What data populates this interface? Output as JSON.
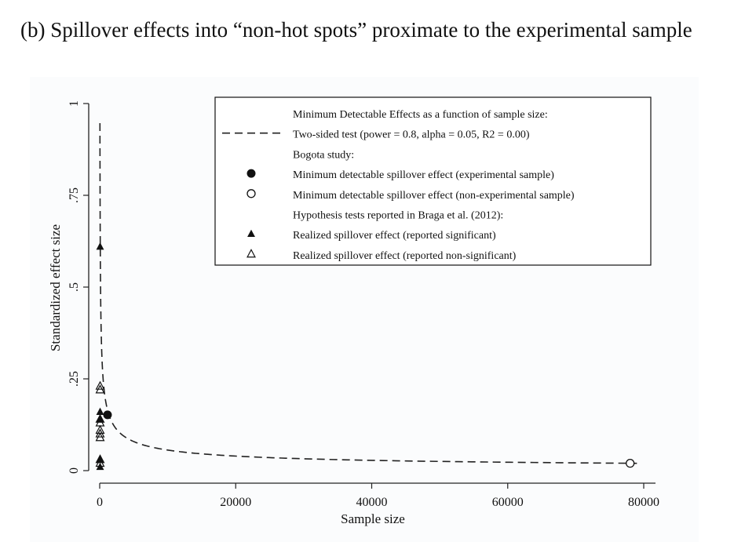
{
  "caption": "(b) Spillover effects into “non-hot spots” proximate to the experimental sample",
  "chart_data": {
    "type": "scatter",
    "xlabel": "Sample size",
    "ylabel": "Standardized effect size",
    "xlim": [
      0,
      80000
    ],
    "ylim": [
      0,
      1
    ],
    "xticks": [
      0,
      20000,
      40000,
      60000,
      80000
    ],
    "xtick_labels": [
      "0",
      "20000",
      "40000",
      "60000",
      "80000"
    ],
    "yticks": [
      0,
      0.25,
      0.5,
      0.75,
      1
    ],
    "ytick_labels": [
      "0",
      ".25",
      ".5",
      ".75",
      "1"
    ],
    "legend": {
      "placement": "top-right",
      "rows": [
        {
          "symbol": "none",
          "text": "Minimum Detectable Effects as a function of sample size:"
        },
        {
          "symbol": "dash",
          "text": "Two-sided test (power = 0.8, alpha = 0.05, R2 = 0.00)"
        },
        {
          "symbol": "none",
          "text": "Bogota study:"
        },
        {
          "symbol": "filled-circle",
          "text": "Minimum detectable spillover effect (experimental sample)"
        },
        {
          "symbol": "open-circle",
          "text": "Minimum detectable spillover effect (non-experimental sample)"
        },
        {
          "symbol": "none",
          "text": "Hypothesis tests reported in Braga et al. (2012):"
        },
        {
          "symbol": "filled-triangle",
          "text": "Realized spillover effect (reported significant)"
        },
        {
          "symbol": "open-triangle",
          "text": "Realized spillover effect (reported non-significant)"
        }
      ]
    },
    "mde_curve": {
      "name": "Two-sided test (power = 0.8, alpha = 0.05, R2 = 0.00)",
      "multiplier": 5.6,
      "x_range": [
        35,
        79000
      ]
    },
    "series": [
      {
        "name": "Minimum detectable spillover effect (experimental sample)",
        "marker": "filled-circle",
        "points": [
          {
            "x": 1150,
            "y": 0.152
          }
        ]
      },
      {
        "name": "Minimum detectable spillover effect (non-experimental sample)",
        "marker": "open-circle",
        "points": [
          {
            "x": 78000,
            "y": 0.02
          }
        ]
      },
      {
        "name": "Realized spillover effect (reported significant)",
        "marker": "filled-triangle",
        "points": [
          {
            "x": 60,
            "y": 0.61
          },
          {
            "x": 60,
            "y": 0.16
          },
          {
            "x": 60,
            "y": 0.14
          },
          {
            "x": 60,
            "y": 0.03
          },
          {
            "x": 60,
            "y": 0.01
          }
        ]
      },
      {
        "name": "Realized spillover effect (reported non-significant)",
        "marker": "open-triangle",
        "points": [
          {
            "x": 60,
            "y": 0.23
          },
          {
            "x": 60,
            "y": 0.22
          },
          {
            "x": 60,
            "y": 0.14
          },
          {
            "x": 60,
            "y": 0.13
          },
          {
            "x": 60,
            "y": 0.11
          },
          {
            "x": 60,
            "y": 0.1
          },
          {
            "x": 60,
            "y": 0.09
          },
          {
            "x": 60,
            "y": 0.03
          },
          {
            "x": 60,
            "y": 0.02
          }
        ]
      }
    ]
  }
}
